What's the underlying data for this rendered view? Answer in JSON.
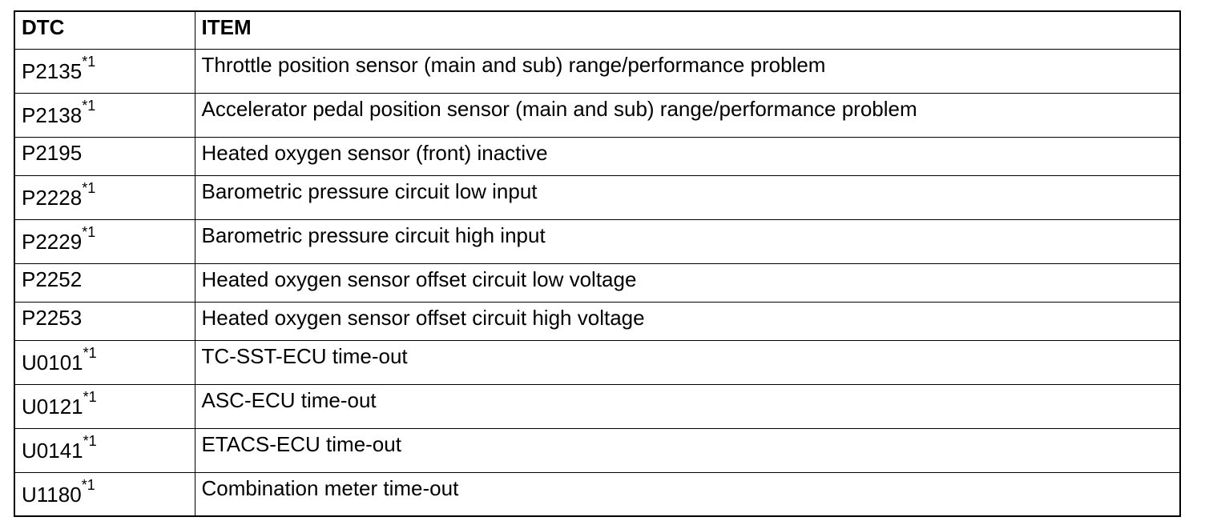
{
  "table": {
    "header": [
      "DTC",
      "ITEM"
    ],
    "rows": [
      {
        "dtc": "P2135",
        "note": "*1",
        "item": "Throttle position sensor (main and sub) range/performance problem"
      },
      {
        "dtc": "P2138",
        "note": "*1",
        "item": "Accelerator pedal position sensor (main and sub) range/performance problem"
      },
      {
        "dtc": "P2195",
        "item": "Heated oxygen sensor (front) inactive"
      },
      {
        "dtc": "P2228",
        "note": "*1",
        "item": "Barometric pressure circuit low input"
      },
      {
        "dtc": "P2229",
        "note": "*1",
        "item": "Barometric pressure circuit high input"
      },
      {
        "dtc": "P2252",
        "item": "Heated oxygen sensor offset circuit low voltage"
      },
      {
        "dtc": "P2253",
        "item": "Heated oxygen sensor offset circuit high voltage"
      },
      {
        "dtc": "U0101",
        "note": "*1",
        "item": "TC-SST-ECU time-out"
      },
      {
        "dtc": "U0121",
        "note": "*1",
        "item": "ASC-ECU time-out"
      },
      {
        "dtc": "U0141",
        "note": "*1",
        "item": "ETACS-ECU time-out"
      },
      {
        "dtc": "U1180",
        "note": "*1",
        "item": "Combination meter time-out"
      }
    ]
  }
}
